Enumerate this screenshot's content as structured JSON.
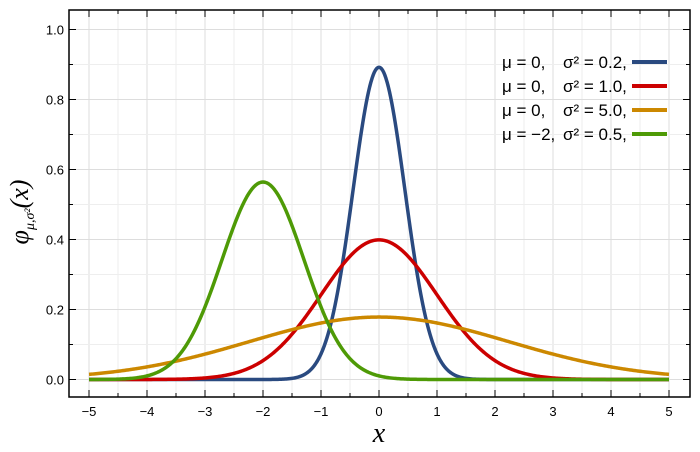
{
  "chart_data": {
    "type": "line",
    "title": "",
    "xlabel": "x",
    "ylabel": "φμ,σ²(x)",
    "xlim": [
      -5.1,
      5.4
    ],
    "ylim": [
      -0.05,
      1.05
    ],
    "x_ticks": [
      -5,
      -4,
      -3,
      -2,
      -1,
      0,
      1,
      2,
      3,
      4,
      5
    ],
    "x_tick_labels": [
      "−5",
      "−4",
      "−3",
      "−2",
      "−1",
      "0",
      "1",
      "2",
      "3",
      "4",
      "5"
    ],
    "y_ticks": [
      0.0,
      0.2,
      0.4,
      0.6,
      0.8,
      1.0
    ],
    "y_tick_labels": [
      "0.0",
      "0.2",
      "0.4",
      "0.6",
      "0.8",
      "1.0"
    ],
    "grid": true,
    "legend_position": "top-right",
    "series": [
      {
        "name": "μ=0, σ²=0.2,",
        "mu_label": "μ = 0,",
        "sigma_label": "σ² = 0.2,",
        "color": "#2a4a80",
        "mu": 0,
        "sigma2": 0.2,
        "peak": 0.892
      },
      {
        "name": "μ=0, σ²=1.0,",
        "mu_label": "μ = 0,",
        "sigma_label": "σ² = 1.0,",
        "color": "#cc0000",
        "mu": 0,
        "sigma2": 1.0,
        "peak": 0.399
      },
      {
        "name": "μ=0, σ²=5.0,",
        "mu_label": "μ = 0,",
        "sigma_label": "σ² = 5.0,",
        "color": "#cc8800",
        "mu": 0,
        "sigma2": 5.0,
        "peak": 0.178
      },
      {
        "name": "μ=−2, σ²=0.5,",
        "mu_label": "μ = −2,",
        "sigma_label": "σ² = 0.5,",
        "color": "#4e9a06",
        "mu": -2,
        "sigma2": 0.5,
        "peak": 0.564
      }
    ]
  }
}
